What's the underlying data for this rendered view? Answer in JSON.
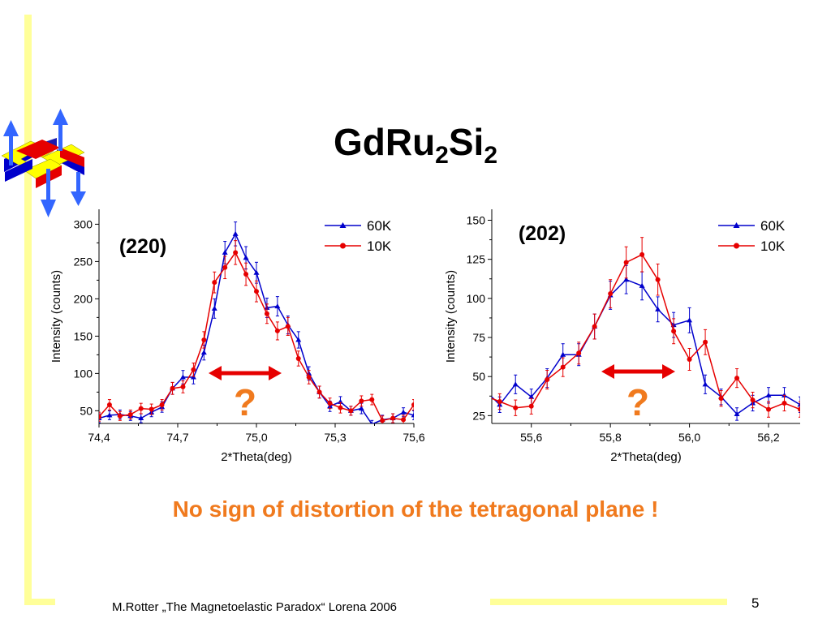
{
  "slide": {
    "title_base": "GdRu",
    "title_sub1": "2",
    "title_mid": "Si",
    "title_sub2": "2",
    "conclusion": "No sign of distortion of the tetragonal plane !",
    "footer": "M.Rotter „The Magnetoelastic Paradox“ Lorena 2006",
    "page_number": "5",
    "logo_icon": "magnetic-structure-logo-icon",
    "colors": {
      "accent_yellow": "#ffff99",
      "conclusion_orange": "#f07a1e",
      "series_60K": "#0000cc",
      "series_10K": "#e60000",
      "arrow_red": "#e60000",
      "question_orange": "#f07a1e"
    }
  },
  "chart_data": [
    {
      "type": "line",
      "annotation": "(220)",
      "question_mark": "?",
      "xlabel": "2*Theta(deg)",
      "ylabel": "Intensity (counts)",
      "xlim": [
        74.4,
        75.6
      ],
      "ylim": [
        33,
        320
      ],
      "xticks": [
        74.4,
        74.7,
        75.0,
        75.3,
        75.6
      ],
      "xtick_labels": [
        "74,4",
        "74,7",
        "75,0",
        "75,3",
        "75,6"
      ],
      "yticks": [
        50,
        100,
        150,
        200,
        250,
        300
      ],
      "ytick_labels": [
        "50",
        "100",
        "150",
        "200",
        "250",
        "300"
      ],
      "legend_position": "top-right",
      "series": [
        {
          "name": "60K",
          "marker": "triangle",
          "x": [
            74.4,
            74.44,
            74.48,
            74.52,
            74.56,
            74.6,
            74.64,
            74.68,
            74.72,
            74.76,
            74.8,
            74.84,
            74.88,
            74.92,
            74.96,
            75.0,
            75.04,
            75.08,
            75.12,
            75.16,
            75.2,
            75.24,
            75.28,
            75.32,
            75.36,
            75.4,
            75.44,
            75.48,
            75.52,
            75.56,
            75.6
          ],
          "y": [
            40,
            44,
            45,
            43,
            40,
            48,
            55,
            80,
            95,
            95,
            128,
            187,
            262,
            287,
            255,
            235,
            188,
            190,
            165,
            145,
            100,
            75,
            56,
            62,
            50,
            53,
            32,
            38,
            40,
            48,
            44
          ],
          "err": [
            6,
            6,
            6,
            6,
            6,
            6,
            7,
            8,
            9,
            9,
            10,
            13,
            15,
            16,
            15,
            14,
            13,
            13,
            12,
            11,
            9,
            8,
            7,
            7,
            6,
            7,
            5,
            6,
            6,
            6,
            6
          ]
        },
        {
          "name": "10K",
          "marker": "circle",
          "x": [
            74.4,
            74.44,
            74.48,
            74.52,
            74.56,
            74.6,
            74.64,
            74.68,
            74.72,
            74.76,
            74.8,
            74.84,
            74.88,
            74.92,
            74.96,
            75.0,
            75.04,
            75.08,
            75.12,
            75.16,
            75.2,
            75.24,
            75.28,
            75.32,
            75.36,
            75.4,
            75.44,
            75.48,
            75.52,
            75.56,
            75.6
          ],
          "y": [
            42,
            58,
            43,
            45,
            53,
            52,
            58,
            80,
            82,
            105,
            145,
            222,
            242,
            262,
            233,
            210,
            180,
            157,
            163,
            120,
            95,
            75,
            60,
            54,
            50,
            63,
            65,
            37,
            40,
            38,
            58
          ],
          "err": [
            6,
            7,
            6,
            6,
            7,
            7,
            7,
            8,
            8,
            9,
            11,
            14,
            15,
            16,
            15,
            14,
            13,
            12,
            12,
            10,
            9,
            8,
            7,
            7,
            6,
            7,
            7,
            6,
            6,
            6,
            7
          ]
        }
      ]
    },
    {
      "type": "line",
      "annotation": "(202)",
      "question_mark": "?",
      "xlabel": "2*Theta(deg)",
      "ylabel": "Intensity (counts)",
      "xlim": [
        55.5,
        56.28
      ],
      "ylim": [
        20,
        157
      ],
      "xticks": [
        55.6,
        55.8,
        56.0,
        56.2
      ],
      "xtick_labels": [
        "55,6",
        "55,8",
        "56,0",
        "56,2"
      ],
      "yticks": [
        25,
        50,
        75,
        100,
        125,
        150
      ],
      "ytick_labels": [
        "25",
        "50",
        "75",
        "100",
        "125",
        "150"
      ],
      "legend_position": "top-right",
      "series": [
        {
          "name": "60K",
          "marker": "triangle",
          "x": [
            55.48,
            55.52,
            55.56,
            55.6,
            55.64,
            55.68,
            55.72,
            55.76,
            55.8,
            55.84,
            55.88,
            55.92,
            55.96,
            56.0,
            56.04,
            56.08,
            56.12,
            56.16,
            56.2,
            56.24,
            56.28
          ],
          "y": [
            42,
            32,
            45,
            37,
            49,
            64,
            64,
            82,
            102,
            112,
            108,
            93,
            83,
            86,
            45,
            37,
            26,
            33,
            38,
            38,
            32
          ],
          "err": [
            6,
            5,
            6,
            5,
            6,
            7,
            7,
            8,
            9,
            9,
            9,
            8,
            8,
            8,
            6,
            5,
            4,
            5,
            5,
            5,
            5
          ]
        },
        {
          "name": "10K",
          "marker": "circle",
          "x": [
            55.48,
            55.52,
            55.56,
            55.6,
            55.64,
            55.68,
            55.72,
            55.76,
            55.8,
            55.84,
            55.88,
            55.92,
            55.96,
            56.0,
            56.04,
            56.08,
            56.12,
            56.16,
            56.2,
            56.24,
            56.28
          ],
          "y": [
            38,
            34,
            30,
            31,
            48,
            56,
            65,
            82,
            103,
            123,
            128,
            112,
            79,
            61,
            72,
            36,
            49,
            35,
            29,
            33,
            29
          ],
          "err": [
            6,
            5,
            5,
            5,
            6,
            6,
            7,
            8,
            9,
            10,
            11,
            10,
            8,
            7,
            8,
            5,
            6,
            5,
            5,
            5,
            5
          ]
        }
      ]
    }
  ]
}
